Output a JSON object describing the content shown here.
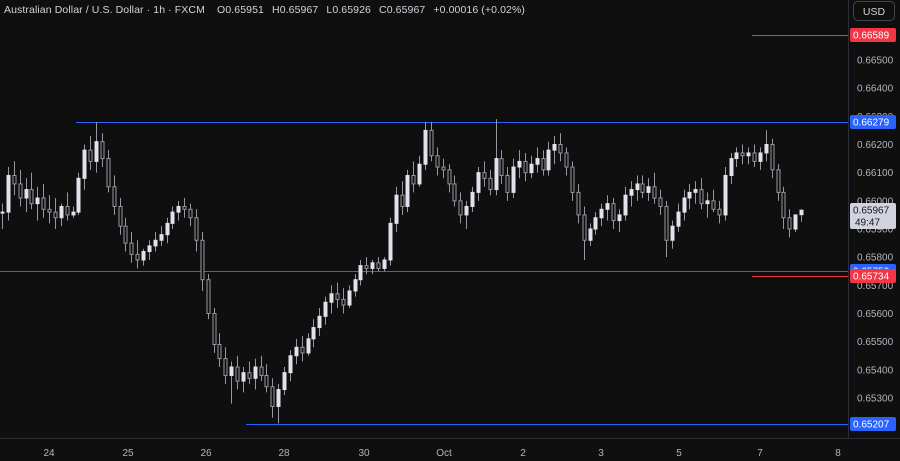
{
  "header": {
    "title": "Australian Dollar / U.S. Dollar · 1h · FXCM",
    "open_label": "O",
    "open": "0.65951",
    "high_label": "H",
    "high": "0.65967",
    "low_label": "L",
    "low": "0.65926",
    "close_label": "C",
    "close": "0.65967",
    "change": "+0.00016 (+0.02%)"
  },
  "currency_button": "USD",
  "colors": {
    "background": "#0f0f0f",
    "candle": "#d1d4dc",
    "level_line": "#2962ff",
    "red_tag": "#f23645",
    "blue_tag": "#2962ff",
    "last_tag": "#d1d4dc"
  },
  "chart_data": {
    "type": "candlestick",
    "ylim": [
      0.65205,
      0.6671
    ],
    "y_ticks": [
      "0.66500",
      "0.66400",
      "0.66300",
      "0.66200",
      "0.66100",
      "0.66000",
      "0.65900",
      "0.65800",
      "0.65700",
      "0.65600",
      "0.65500",
      "0.65400",
      "0.65300"
    ],
    "x_ticks": [
      "24",
      "25",
      "26",
      "28",
      "30",
      "Oct",
      "2",
      "3",
      "5",
      "7",
      "8"
    ],
    "horizontal_levels": [
      {
        "value": "0.66279"
      },
      {
        "value": "0.65752"
      },
      {
        "value": "0.65207"
      }
    ],
    "price_tags": [
      {
        "value": "0.66589",
        "color": "red"
      },
      {
        "value": "0.66279",
        "color": "blue"
      },
      {
        "value": "0.65752",
        "color": "blue"
      },
      {
        "value": "0.65734",
        "color": "red"
      },
      {
        "value": "0.65207",
        "color": "blue"
      }
    ],
    "last_price": {
      "value": "0.65967",
      "countdown": "49:47"
    },
    "ohlc": [
      [
        0.6596,
        0.6599,
        0.659,
        0.6596
      ],
      [
        0.6596,
        0.6612,
        0.6593,
        0.6609
      ],
      [
        0.6609,
        0.6614,
        0.6602,
        0.6606
      ],
      [
        0.6606,
        0.6611,
        0.6598,
        0.6601
      ],
      [
        0.6601,
        0.6608,
        0.6596,
        0.6604
      ],
      [
        0.6604,
        0.661,
        0.6597,
        0.6599
      ],
      [
        0.6599,
        0.6605,
        0.6593,
        0.6601
      ],
      [
        0.6601,
        0.6606,
        0.6594,
        0.6597
      ],
      [
        0.6597,
        0.6602,
        0.6592,
        0.6596
      ],
      [
        0.6596,
        0.6601,
        0.659,
        0.6594
      ],
      [
        0.6594,
        0.6599,
        0.6591,
        0.6598
      ],
      [
        0.6598,
        0.6603,
        0.6593,
        0.6595
      ],
      [
        0.6595,
        0.6598,
        0.6594,
        0.6596
      ],
      [
        0.6596,
        0.661,
        0.6595,
        0.6608
      ],
      [
        0.6608,
        0.662,
        0.6604,
        0.6618
      ],
      [
        0.6618,
        0.6623,
        0.6611,
        0.6614
      ],
      [
        0.6614,
        0.6628,
        0.661,
        0.6621
      ],
      [
        0.6621,
        0.6624,
        0.6612,
        0.6615
      ],
      [
        0.6615,
        0.6618,
        0.6603,
        0.6605
      ],
      [
        0.6605,
        0.6609,
        0.6595,
        0.6598
      ],
      [
        0.6598,
        0.6601,
        0.6588,
        0.6591
      ],
      [
        0.6591,
        0.6594,
        0.6582,
        0.6585
      ],
      [
        0.6585,
        0.6589,
        0.6578,
        0.6581
      ],
      [
        0.6581,
        0.6586,
        0.6576,
        0.6579
      ],
      [
        0.6579,
        0.6583,
        0.6577,
        0.6582
      ],
      [
        0.6582,
        0.6586,
        0.6579,
        0.6584
      ],
      [
        0.6584,
        0.6589,
        0.6582,
        0.6586
      ],
      [
        0.6586,
        0.6591,
        0.6584,
        0.6588
      ],
      [
        0.6588,
        0.6594,
        0.6585,
        0.6592
      ],
      [
        0.6592,
        0.6598,
        0.659,
        0.6596
      ],
      [
        0.6596,
        0.66,
        0.6593,
        0.6598
      ],
      [
        0.6598,
        0.6601,
        0.6594,
        0.6597
      ],
      [
        0.6597,
        0.6599,
        0.6591,
        0.6594
      ],
      [
        0.6594,
        0.6597,
        0.6582,
        0.6586
      ],
      [
        0.6586,
        0.6589,
        0.6568,
        0.6572
      ],
      [
        0.6572,
        0.6574,
        0.6558,
        0.656
      ],
      [
        0.656,
        0.6562,
        0.6546,
        0.6549
      ],
      [
        0.6549,
        0.6553,
        0.6541,
        0.6544
      ],
      [
        0.6544,
        0.6548,
        0.6535,
        0.6538
      ],
      [
        0.6538,
        0.6543,
        0.6528,
        0.6541
      ],
      [
        0.6541,
        0.6545,
        0.6533,
        0.6536
      ],
      [
        0.6536,
        0.6541,
        0.6532,
        0.6539
      ],
      [
        0.6539,
        0.6543,
        0.6535,
        0.6537
      ],
      [
        0.6537,
        0.6544,
        0.6533,
        0.6541
      ],
      [
        0.6541,
        0.6545,
        0.6536,
        0.6538
      ],
      [
        0.6538,
        0.6542,
        0.6532,
        0.6534
      ],
      [
        0.6534,
        0.6537,
        0.6523,
        0.6527
      ],
      [
        0.6527,
        0.6535,
        0.6521,
        0.6533
      ],
      [
        0.6533,
        0.6541,
        0.6531,
        0.6539
      ],
      [
        0.6539,
        0.6547,
        0.6536,
        0.6545
      ],
      [
        0.6545,
        0.6551,
        0.6542,
        0.6548
      ],
      [
        0.6548,
        0.6552,
        0.6543,
        0.6546
      ],
      [
        0.6546,
        0.6553,
        0.6545,
        0.6551
      ],
      [
        0.6551,
        0.6558,
        0.6548,
        0.6555
      ],
      [
        0.6555,
        0.6562,
        0.6552,
        0.6559
      ],
      [
        0.6559,
        0.6566,
        0.6556,
        0.6564
      ],
      [
        0.6564,
        0.657,
        0.656,
        0.6567
      ],
      [
        0.6567,
        0.6571,
        0.6562,
        0.6565
      ],
      [
        0.6565,
        0.6569,
        0.656,
        0.6563
      ],
      [
        0.6563,
        0.657,
        0.6562,
        0.6568
      ],
      [
        0.6568,
        0.6574,
        0.6566,
        0.6572
      ],
      [
        0.6572,
        0.6579,
        0.657,
        0.6577
      ],
      [
        0.6577,
        0.658,
        0.6574,
        0.6576
      ],
      [
        0.6576,
        0.6579,
        0.6574,
        0.6578
      ],
      [
        0.6578,
        0.658,
        0.6575,
        0.6576
      ],
      [
        0.6576,
        0.658,
        0.6575,
        0.6579
      ],
      [
        0.6579,
        0.6594,
        0.6577,
        0.6592
      ],
      [
        0.6592,
        0.6605,
        0.6589,
        0.6602
      ],
      [
        0.6602,
        0.6607,
        0.6595,
        0.6598
      ],
      [
        0.6598,
        0.6611,
        0.6596,
        0.6609
      ],
      [
        0.6609,
        0.6614,
        0.6603,
        0.6606
      ],
      [
        0.6606,
        0.6616,
        0.6605,
        0.6613
      ],
      [
        0.6613,
        0.6628,
        0.6611,
        0.6625
      ],
      [
        0.6625,
        0.6628,
        0.6614,
        0.6616
      ],
      [
        0.6616,
        0.6619,
        0.6609,
        0.6612
      ],
      [
        0.6612,
        0.6615,
        0.6608,
        0.6611
      ],
      [
        0.6611,
        0.6613,
        0.6603,
        0.6606
      ],
      [
        0.6606,
        0.6609,
        0.6598,
        0.66
      ],
      [
        0.66,
        0.6603,
        0.6592,
        0.6595
      ],
      [
        0.6595,
        0.66,
        0.659,
        0.6598
      ],
      [
        0.6598,
        0.6605,
        0.6596,
        0.6603
      ],
      [
        0.6603,
        0.6612,
        0.66,
        0.661
      ],
      [
        0.661,
        0.6614,
        0.6605,
        0.6608
      ],
      [
        0.6608,
        0.6611,
        0.6602,
        0.6604
      ],
      [
        0.6604,
        0.6629,
        0.6602,
        0.6615
      ],
      [
        0.6615,
        0.6618,
        0.6606,
        0.6609
      ],
      [
        0.6609,
        0.6612,
        0.66,
        0.6603
      ],
      [
        0.6603,
        0.6615,
        0.6601,
        0.6612
      ],
      [
        0.6612,
        0.6618,
        0.6608,
        0.6614
      ],
      [
        0.6614,
        0.6617,
        0.6607,
        0.661
      ],
      [
        0.661,
        0.6616,
        0.6608,
        0.6613
      ],
      [
        0.6613,
        0.6619,
        0.661,
        0.6615
      ],
      [
        0.6615,
        0.6618,
        0.6609,
        0.6611
      ],
      [
        0.6611,
        0.6621,
        0.6609,
        0.6618
      ],
      [
        0.6618,
        0.6623,
        0.6613,
        0.662
      ],
      [
        0.662,
        0.6624,
        0.6614,
        0.6617
      ],
      [
        0.6617,
        0.6619,
        0.6609,
        0.6612
      ],
      [
        0.6612,
        0.6614,
        0.66,
        0.6603
      ],
      [
        0.6603,
        0.6606,
        0.6592,
        0.6595
      ],
      [
        0.6595,
        0.6598,
        0.6579,
        0.6586
      ],
      [
        0.6586,
        0.6592,
        0.6584,
        0.659
      ],
      [
        0.659,
        0.6596,
        0.6588,
        0.6594
      ],
      [
        0.6594,
        0.6599,
        0.6591,
        0.6597
      ],
      [
        0.6597,
        0.6602,
        0.6593,
        0.6599
      ],
      [
        0.6599,
        0.6601,
        0.659,
        0.6593
      ],
      [
        0.6593,
        0.6597,
        0.6589,
        0.6595
      ],
      [
        0.6595,
        0.6605,
        0.6593,
        0.6602
      ],
      [
        0.6602,
        0.6607,
        0.6598,
        0.6604
      ],
      [
        0.6604,
        0.6609,
        0.66,
        0.6606
      ],
      [
        0.6606,
        0.6609,
        0.6601,
        0.6603
      ],
      [
        0.6603,
        0.6608,
        0.66,
        0.6605
      ],
      [
        0.6605,
        0.661,
        0.6599,
        0.6601
      ],
      [
        0.6601,
        0.6604,
        0.6595,
        0.6598
      ],
      [
        0.6598,
        0.66,
        0.658,
        0.6586
      ],
      [
        0.6586,
        0.6593,
        0.6583,
        0.6591
      ],
      [
        0.6591,
        0.6599,
        0.6589,
        0.6596
      ],
      [
        0.6596,
        0.6604,
        0.6593,
        0.6601
      ],
      [
        0.6601,
        0.6606,
        0.6597,
        0.6603
      ],
      [
        0.6603,
        0.6607,
        0.6599,
        0.6604
      ],
      [
        0.6604,
        0.6608,
        0.6597,
        0.6599
      ],
      [
        0.6599,
        0.6603,
        0.6594,
        0.66
      ],
      [
        0.66,
        0.6604,
        0.6596,
        0.6597
      ],
      [
        0.6597,
        0.66,
        0.6592,
        0.6595
      ],
      [
        0.6595,
        0.6612,
        0.6593,
        0.6609
      ],
      [
        0.6609,
        0.6617,
        0.6606,
        0.6615
      ],
      [
        0.6615,
        0.6619,
        0.6612,
        0.6617
      ],
      [
        0.6617,
        0.662,
        0.6613,
        0.6616
      ],
      [
        0.6616,
        0.6619,
        0.6613,
        0.6617
      ],
      [
        0.6617,
        0.662,
        0.6612,
        0.6614
      ],
      [
        0.6614,
        0.6619,
        0.6611,
        0.6617
      ],
      [
        0.6617,
        0.6625,
        0.6614,
        0.662
      ],
      [
        0.662,
        0.6622,
        0.6608,
        0.6611
      ],
      [
        0.6611,
        0.6613,
        0.66,
        0.6603
      ],
      [
        0.6603,
        0.6605,
        0.659,
        0.6594
      ],
      [
        0.6594,
        0.6597,
        0.6587,
        0.659
      ],
      [
        0.659,
        0.6595,
        0.6589,
        0.6595
      ],
      [
        0.65951,
        0.65967,
        0.65926,
        0.65967
      ]
    ]
  }
}
